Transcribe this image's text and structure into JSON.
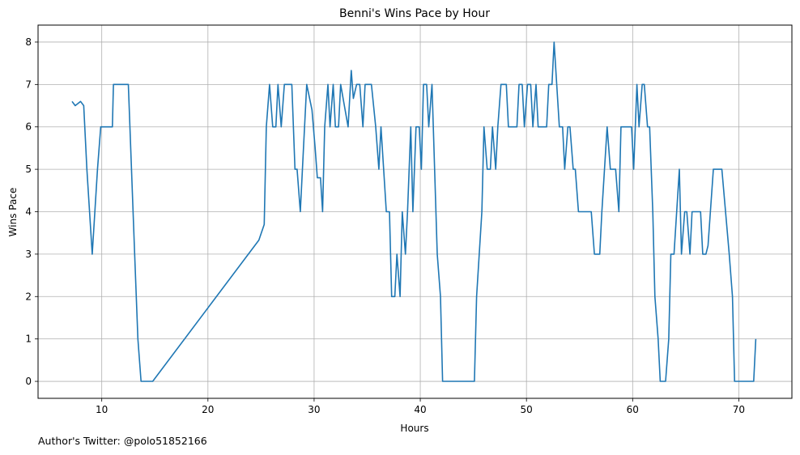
{
  "chart_data": {
    "type": "line",
    "title": "Benni's Wins Pace by Hour",
    "xlabel": "Hours",
    "ylabel": "Wins Pace",
    "xlim": [
      4,
      75
    ],
    "ylim": [
      -0.4,
      8.4
    ],
    "x_ticks": [
      10,
      20,
      30,
      40,
      50,
      60,
      70
    ],
    "y_ticks": [
      0,
      1,
      2,
      3,
      4,
      5,
      6,
      7,
      8
    ],
    "grid": true,
    "line_color": "#1f77b4",
    "series": [
      {
        "points": [
          [
            7.2,
            6.6
          ],
          [
            7.5,
            6.5
          ],
          [
            8.0,
            6.6
          ],
          [
            8.3,
            6.5
          ],
          [
            8.6,
            5.0
          ],
          [
            9.1,
            3.0
          ],
          [
            9.6,
            5.0
          ],
          [
            9.9,
            6.0
          ],
          [
            10.7,
            6.0
          ],
          [
            11.0,
            6.0
          ],
          [
            11.1,
            7.0
          ],
          [
            11.3,
            7.0
          ],
          [
            12.5,
            7.0
          ],
          [
            12.8,
            5.0
          ],
          [
            13.1,
            3.0
          ],
          [
            13.4,
            1.0
          ],
          [
            13.7,
            0.0
          ],
          [
            14.8,
            0.0
          ],
          [
            24.8,
            3.33
          ],
          [
            25.3,
            3.7
          ],
          [
            25.5,
            6.0
          ],
          [
            25.8,
            7.0
          ],
          [
            26.1,
            6.0
          ],
          [
            26.4,
            6.0
          ],
          [
            26.6,
            7.0
          ],
          [
            26.9,
            6.0
          ],
          [
            27.2,
            7.0
          ],
          [
            27.9,
            7.0
          ],
          [
            28.2,
            5.0
          ],
          [
            28.4,
            5.0
          ],
          [
            28.7,
            4.0
          ],
          [
            29.0,
            5.5
          ],
          [
            29.3,
            7.0
          ],
          [
            29.8,
            6.4
          ],
          [
            30.1,
            5.5
          ],
          [
            30.3,
            4.8
          ],
          [
            30.6,
            4.8
          ],
          [
            30.8,
            4.0
          ],
          [
            31.0,
            6.0
          ],
          [
            31.3,
            7.0
          ],
          [
            31.5,
            6.0
          ],
          [
            31.8,
            7.0
          ],
          [
            32.0,
            6.0
          ],
          [
            32.3,
            6.0
          ],
          [
            32.5,
            7.0
          ],
          [
            33.2,
            6.0
          ],
          [
            33.5,
            7.33
          ],
          [
            33.7,
            6.67
          ],
          [
            34.0,
            7.0
          ],
          [
            34.3,
            7.0
          ],
          [
            34.6,
            6.0
          ],
          [
            34.8,
            7.0
          ],
          [
            35.4,
            7.0
          ],
          [
            35.8,
            6.0
          ],
          [
            36.1,
            5.0
          ],
          [
            36.3,
            6.0
          ],
          [
            36.8,
            4.0
          ],
          [
            37.1,
            4.0
          ],
          [
            37.3,
            2.0
          ],
          [
            37.6,
            2.0
          ],
          [
            37.8,
            3.0
          ],
          [
            38.1,
            2.0
          ],
          [
            38.3,
            4.0
          ],
          [
            38.6,
            3.0
          ],
          [
            38.8,
            4.0
          ],
          [
            39.1,
            6.0
          ],
          [
            39.3,
            4.0
          ],
          [
            39.6,
            6.0
          ],
          [
            39.9,
            6.0
          ],
          [
            40.1,
            5.0
          ],
          [
            40.3,
            7.0
          ],
          [
            40.6,
            7.0
          ],
          [
            40.8,
            6.0
          ],
          [
            41.1,
            7.0
          ],
          [
            41.6,
            3.0
          ],
          [
            41.9,
            2.0
          ],
          [
            42.1,
            0.0
          ],
          [
            45.1,
            0.0
          ],
          [
            45.3,
            2.0
          ],
          [
            45.8,
            4.0
          ],
          [
            46.0,
            6.0
          ],
          [
            46.3,
            5.0
          ],
          [
            46.6,
            5.0
          ],
          [
            46.8,
            6.0
          ],
          [
            47.1,
            5.0
          ],
          [
            47.3,
            6.0
          ],
          [
            47.6,
            7.0
          ],
          [
            48.1,
            7.0
          ],
          [
            48.3,
            6.0
          ],
          [
            49.1,
            6.0
          ],
          [
            49.3,
            7.0
          ],
          [
            49.6,
            7.0
          ],
          [
            49.8,
            6.0
          ],
          [
            50.1,
            7.0
          ],
          [
            50.4,
            7.0
          ],
          [
            50.6,
            6.0
          ],
          [
            50.9,
            7.0
          ],
          [
            51.1,
            6.0
          ],
          [
            51.9,
            6.0
          ],
          [
            52.1,
            7.0
          ],
          [
            52.4,
            7.0
          ],
          [
            52.6,
            8.0
          ],
          [
            53.1,
            6.0
          ],
          [
            53.4,
            6.0
          ],
          [
            53.6,
            5.0
          ],
          [
            53.9,
            6.0
          ],
          [
            54.1,
            6.0
          ],
          [
            54.4,
            5.0
          ],
          [
            54.6,
            5.0
          ],
          [
            54.9,
            4.0
          ],
          [
            56.1,
            4.0
          ],
          [
            56.4,
            3.0
          ],
          [
            56.9,
            3.0
          ],
          [
            57.1,
            4.0
          ],
          [
            57.6,
            6.0
          ],
          [
            57.9,
            5.0
          ],
          [
            58.4,
            5.0
          ],
          [
            58.7,
            4.0
          ],
          [
            58.9,
            6.0
          ],
          [
            59.9,
            6.0
          ],
          [
            60.1,
            5.0
          ],
          [
            60.4,
            7.0
          ],
          [
            60.6,
            6.0
          ],
          [
            60.9,
            7.0
          ],
          [
            61.1,
            7.0
          ],
          [
            61.4,
            6.0
          ],
          [
            61.6,
            6.0
          ],
          [
            61.9,
            4.0
          ],
          [
            62.1,
            2.0
          ],
          [
            62.4,
            1.0
          ],
          [
            62.6,
            0.0
          ],
          [
            63.1,
            0.0
          ],
          [
            63.4,
            1.0
          ],
          [
            63.6,
            3.0
          ],
          [
            63.9,
            3.0
          ],
          [
            64.4,
            5.0
          ],
          [
            64.6,
            3.0
          ],
          [
            64.9,
            4.0
          ],
          [
            65.1,
            4.0
          ],
          [
            65.4,
            3.0
          ],
          [
            65.6,
            4.0
          ],
          [
            66.4,
            4.0
          ],
          [
            66.6,
            3.0
          ],
          [
            66.9,
            3.0
          ],
          [
            67.1,
            3.2
          ],
          [
            67.6,
            5.0
          ],
          [
            68.4,
            5.0
          ],
          [
            69.1,
            3.0
          ],
          [
            69.4,
            2.0
          ],
          [
            69.6,
            0.0
          ],
          [
            71.4,
            0.0
          ],
          [
            71.6,
            1.0
          ]
        ]
      }
    ]
  },
  "footer": {
    "author_text": "Author's Twitter: @polo51852166"
  }
}
